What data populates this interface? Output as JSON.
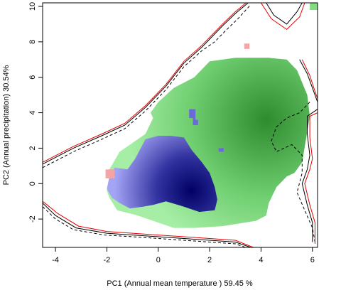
{
  "chart_data": {
    "type": "heatmap",
    "title": "",
    "xlabel": "PC1 (Annual mean temperature ) 59.45 %",
    "ylabel": "PC2 (Annual precipitation) 30.54%",
    "xlim": [
      -4.5,
      6.2
    ],
    "ylim": [
      -3.6,
      10.2
    ],
    "xticks": [
      -4,
      -2,
      0,
      2,
      4,
      6
    ],
    "yticks": [
      -2,
      0,
      2,
      4,
      6,
      8,
      10
    ],
    "grid": false,
    "legend": "none",
    "colors": {
      "green_light": "#a6eea6",
      "green_dark": "#2e8b2e",
      "blue_light": "#a4a4f6",
      "blue_dark": "#000064",
      "overlap_pink": "#f4a4a4",
      "contour_black": "#000000",
      "contour_red": "#ff0000"
    },
    "layers": [
      {
        "name": "green-density",
        "peak": [
          4.2,
          3.6
        ],
        "polygon": [
          [
            -1.9,
            0.8
          ],
          [
            -1.5,
            1.8
          ],
          [
            -0.5,
            2.8
          ],
          [
            -0.2,
            3.7
          ],
          [
            -0.3,
            4.0
          ],
          [
            0,
            4.6
          ],
          [
            0.6,
            5.4
          ],
          [
            1.4,
            6.0
          ],
          [
            2.0,
            6.9
          ],
          [
            3.0,
            7.1
          ],
          [
            4.3,
            7.1
          ],
          [
            5.0,
            7.0
          ],
          [
            5.4,
            6.4
          ],
          [
            5.8,
            5.0
          ],
          [
            5.9,
            3.8
          ],
          [
            5.6,
            1.2
          ],
          [
            5.3,
            0.6
          ],
          [
            5.0,
            0.4
          ],
          [
            4.6,
            -0.2
          ],
          [
            4.3,
            -1.1
          ],
          [
            4.2,
            -1.8
          ],
          [
            3.8,
            -2.1
          ],
          [
            2.5,
            -2.4
          ],
          [
            1.4,
            -2.5
          ],
          [
            0.6,
            -2.5
          ],
          [
            -0.8,
            -1.8
          ],
          [
            -1.6,
            -1.5
          ],
          [
            -1.9,
            -0.8
          ],
          [
            -2.0,
            -0.4
          ],
          [
            -1.9,
            0.2
          ]
        ]
      },
      {
        "name": "blue-density",
        "peak": [
          1.3,
          -0.4
        ],
        "polygon": [
          [
            -1.7,
            0.9
          ],
          [
            -1.2,
            0.8
          ],
          [
            -0.9,
            1.4
          ],
          [
            -0.5,
            2.5
          ],
          [
            0,
            2.7
          ],
          [
            0.5,
            2.7
          ],
          [
            1.0,
            2.6
          ],
          [
            1.3,
            1.9
          ],
          [
            1.7,
            1.2
          ],
          [
            2.0,
            0.6
          ],
          [
            2.2,
            -0.2
          ],
          [
            2.3,
            -0.9
          ],
          [
            2.2,
            -1.5
          ],
          [
            1.6,
            -1.6
          ],
          [
            1.0,
            -1.3
          ],
          [
            0.3,
            -1.0
          ],
          [
            -0.2,
            -1.2
          ],
          [
            -0.6,
            -1.3
          ],
          [
            -1.1,
            -1.4
          ],
          [
            -1.5,
            -1.1
          ],
          [
            -1.8,
            -0.8
          ],
          [
            -2.0,
            -0.3
          ],
          [
            -1.9,
            0.4
          ]
        ]
      }
    ],
    "small_patches": [
      {
        "fill": "blue",
        "polygon": [
          [
            1.2,
            4.2
          ],
          [
            1.45,
            4.2
          ],
          [
            1.45,
            3.6
          ],
          [
            1.55,
            3.6
          ],
          [
            1.55,
            3.3
          ],
          [
            1.35,
            3.3
          ],
          [
            1.35,
            3.7
          ],
          [
            1.2,
            3.7
          ]
        ]
      },
      {
        "fill": "blue",
        "polygon": [
          [
            2.35,
            2.0
          ],
          [
            2.55,
            2.0
          ],
          [
            2.55,
            1.8
          ],
          [
            2.35,
            1.8
          ]
        ]
      },
      {
        "fill": "pink",
        "polygon": [
          [
            -2.05,
            0.8
          ],
          [
            -1.7,
            0.8
          ],
          [
            -1.7,
            0.3
          ],
          [
            -2.05,
            0.3
          ]
        ]
      },
      {
        "fill": "pink",
        "polygon": [
          [
            3.35,
            7.9
          ],
          [
            3.55,
            7.9
          ],
          [
            3.55,
            7.6
          ],
          [
            3.35,
            7.6
          ]
        ]
      },
      {
        "fill": "green",
        "polygon": [
          [
            5.9,
            10.2
          ],
          [
            6.2,
            10.2
          ],
          [
            6.2,
            9.8
          ],
          [
            5.9,
            9.8
          ]
        ]
      }
    ],
    "contours": [
      {
        "name": "outer-contour-black",
        "color": "#000000",
        "dash": "none",
        "points": [
          [
            -4.5,
            1.1
          ],
          [
            -3.3,
            2.0
          ],
          [
            -2.2,
            2.7
          ],
          [
            -1.3,
            3.3
          ],
          [
            -0.5,
            4.3
          ],
          [
            0.3,
            5.5
          ],
          [
            1.0,
            6.8
          ],
          [
            1.7,
            7.7
          ],
          [
            2.1,
            8.3
          ],
          [
            2.5,
            8.9
          ],
          [
            3.0,
            9.6
          ],
          [
            3.5,
            10.2
          ]
        ]
      },
      {
        "name": "outer-contour-red",
        "color": "#e60000",
        "dash": "none",
        "points": [
          [
            -4.5,
            1.2
          ],
          [
            -3.3,
            2.1
          ],
          [
            -2.2,
            2.8
          ],
          [
            -1.3,
            3.4
          ],
          [
            -0.5,
            4.4
          ],
          [
            0.3,
            5.6
          ],
          [
            1.0,
            6.9
          ],
          [
            1.7,
            7.8
          ],
          [
            2.1,
            8.4
          ],
          [
            2.5,
            9.0
          ],
          [
            3.0,
            9.7
          ],
          [
            3.5,
            10.3
          ]
        ]
      },
      {
        "name": "outer-contour-dashed",
        "color": "#000000",
        "dash": "4,3",
        "points": [
          [
            -4.5,
            0.9
          ],
          [
            -3.3,
            1.8
          ],
          [
            -2.2,
            2.5
          ],
          [
            -1.3,
            3.1
          ],
          [
            -0.5,
            4.1
          ],
          [
            0.3,
            5.3
          ],
          [
            1.0,
            6.6
          ],
          [
            1.7,
            7.5
          ],
          [
            2.2,
            8.0
          ],
          [
            2.6,
            8.6
          ],
          [
            3.1,
            9.3
          ],
          [
            3.6,
            10.1
          ]
        ]
      },
      {
        "name": "right-contour-black",
        "color": "#000000",
        "dash": "none",
        "points": [
          [
            4.2,
            10.2
          ],
          [
            4.5,
            9.5
          ],
          [
            5.0,
            9.0
          ],
          [
            5.4,
            9.7
          ],
          [
            5.6,
            10.2
          ]
        ]
      },
      {
        "name": "right-contour-red",
        "color": "#e60000",
        "dash": "none",
        "points": [
          [
            4.0,
            10.2
          ],
          [
            4.4,
            9.3
          ],
          [
            5.0,
            8.7
          ],
          [
            5.5,
            9.4
          ],
          [
            5.7,
            10.2
          ]
        ]
      },
      {
        "name": "right-edge-contour-black",
        "color": "#000000",
        "dash": "none",
        "points": [
          [
            5.5,
            7.0
          ],
          [
            5.8,
            6.2
          ],
          [
            6.0,
            5.4
          ],
          [
            6.2,
            4.6
          ]
        ]
      },
      {
        "name": "right-edge-contour-red",
        "color": "#e60000",
        "dash": "none",
        "points": [
          [
            5.6,
            7.0
          ],
          [
            5.9,
            6.1
          ],
          [
            6.1,
            5.2
          ],
          [
            6.2,
            4.8
          ]
        ]
      },
      {
        "name": "inner-right-dashed",
        "color": "#000000",
        "dash": "4,3",
        "points": [
          [
            5.9,
            4.6
          ],
          [
            5.5,
            4.0
          ],
          [
            5.0,
            3.7
          ],
          [
            4.6,
            3.2
          ],
          [
            4.4,
            2.4
          ],
          [
            4.6,
            1.8
          ],
          [
            5.2,
            2.2
          ],
          [
            5.6,
            1.6
          ],
          [
            5.6,
            0.6
          ],
          [
            5.4,
            -0.5
          ],
          [
            5.7,
            -1.5
          ],
          [
            6.0,
            -2.5
          ],
          [
            6.1,
            -3.3
          ]
        ]
      },
      {
        "name": "inner-right-black",
        "color": "#000000",
        "dash": "none",
        "points": [
          [
            6.2,
            4.2
          ],
          [
            5.8,
            3.8
          ],
          [
            5.8,
            2.8
          ],
          [
            5.9,
            1.6
          ],
          [
            5.8,
            0.8
          ],
          [
            5.6,
            0.0
          ],
          [
            5.8,
            -1.2
          ],
          [
            6.0,
            -2.2
          ],
          [
            6.0,
            -3.3
          ]
        ]
      },
      {
        "name": "inner-right-red",
        "color": "#e60000",
        "dash": "none",
        "points": [
          [
            6.2,
            4.0
          ],
          [
            5.9,
            3.8
          ],
          [
            5.9,
            2.6
          ],
          [
            6.0,
            1.4
          ],
          [
            5.9,
            0.8
          ],
          [
            5.7,
            0.0
          ],
          [
            5.9,
            -1.2
          ],
          [
            6.1,
            -2.2
          ],
          [
            6.1,
            -3.4
          ]
        ]
      },
      {
        "name": "bottom-contour-black",
        "color": "#000000",
        "dash": "none",
        "points": [
          [
            -4.5,
            -1.1
          ],
          [
            -4.0,
            -1.8
          ],
          [
            -3.2,
            -2.5
          ],
          [
            -2.0,
            -2.8
          ],
          [
            -1.0,
            -2.9
          ],
          [
            0.0,
            -3.0
          ],
          [
            1.0,
            -3.1
          ],
          [
            2.0,
            -3.2
          ],
          [
            3.0,
            -3.3
          ],
          [
            3.6,
            -3.6
          ]
        ]
      },
      {
        "name": "bottom-contour-red",
        "color": "#e60000",
        "dash": "none",
        "points": [
          [
            -4.5,
            -1.0
          ],
          [
            -3.9,
            -1.7
          ],
          [
            -3.1,
            -2.4
          ],
          [
            -2.0,
            -2.7
          ],
          [
            -1.0,
            -2.8
          ],
          [
            0.0,
            -2.9
          ],
          [
            1.0,
            -3.0
          ],
          [
            2.0,
            -3.1
          ],
          [
            3.0,
            -3.2
          ],
          [
            3.7,
            -3.6
          ]
        ]
      },
      {
        "name": "bottom-contour-dashed",
        "color": "#000000",
        "dash": "4,3",
        "points": [
          [
            -4.5,
            -1.3
          ],
          [
            -4.0,
            -2.0
          ],
          [
            -3.3,
            -2.6
          ],
          [
            -2.1,
            -2.9
          ],
          [
            -1.0,
            -3.0
          ],
          [
            0.0,
            -3.1
          ],
          [
            1.0,
            -3.2
          ],
          [
            2.0,
            -3.3
          ],
          [
            3.0,
            -3.4
          ],
          [
            3.4,
            -3.6
          ]
        ]
      }
    ]
  }
}
